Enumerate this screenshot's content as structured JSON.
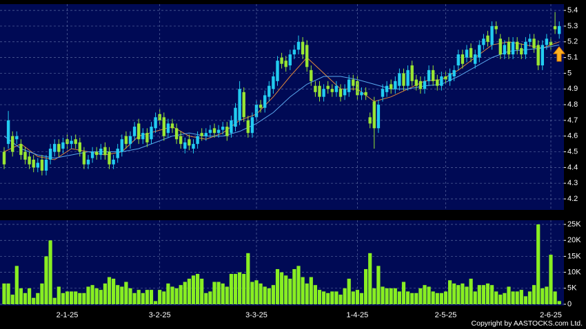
{
  "chart_data": [
    {
      "type": "candlestick",
      "categories": [
        null,
        null,
        null,
        null,
        null,
        null,
        null,
        null,
        null,
        null,
        null,
        null,
        null,
        null,
        null,
        "2-1-25",
        null,
        null,
        null,
        null,
        null,
        null,
        null,
        null,
        null,
        null,
        null,
        null,
        null,
        null,
        null,
        null,
        null,
        null,
        null,
        null,
        null,
        "3-2-25",
        null,
        null,
        null,
        null,
        null,
        null,
        null,
        null,
        null,
        null,
        null,
        null,
        null,
        null,
        null,
        null,
        null,
        null,
        null,
        null,
        null,
        null,
        "3-3-25",
        null,
        null,
        null,
        null,
        null,
        null,
        null,
        null,
        null,
        null,
        null,
        null,
        null,
        null,
        null,
        null,
        null,
        null,
        null,
        null,
        null,
        null,
        null,
        "1-4-25",
        null,
        null,
        null,
        null,
        null,
        null,
        null,
        null,
        null,
        null,
        null,
        null,
        null,
        null,
        null,
        null,
        null,
        null,
        null,
        null,
        "2-5-25",
        null,
        null,
        null,
        null,
        null,
        null,
        null,
        null,
        null,
        null,
        null,
        null,
        null,
        null,
        null,
        null,
        null,
        null,
        null,
        null,
        null,
        null,
        null,
        null,
        "2-6-25",
        null,
        null
      ],
      "candles": [
        [
          4.5,
          4.53,
          4.39,
          4.42
        ],
        [
          4.55,
          4.76,
          4.52,
          4.7
        ],
        [
          4.6,
          4.63,
          4.47,
          4.5
        ],
        [
          4.58,
          4.63,
          4.55,
          4.6
        ],
        [
          4.55,
          4.58,
          4.45,
          4.48
        ],
        [
          4.5,
          4.53,
          4.42,
          4.45
        ],
        [
          4.47,
          4.5,
          4.39,
          4.42
        ],
        [
          4.45,
          4.48,
          4.37,
          4.4
        ],
        [
          4.4,
          4.46,
          4.37,
          4.43
        ],
        [
          4.45,
          4.48,
          4.35,
          4.38
        ],
        [
          4.38,
          4.48,
          4.35,
          4.45
        ],
        [
          4.45,
          4.55,
          4.42,
          4.52
        ],
        [
          4.5,
          4.58,
          4.47,
          4.55
        ],
        [
          4.55,
          4.58,
          4.47,
          4.5
        ],
        [
          4.52,
          4.59,
          4.49,
          4.56
        ],
        [
          4.58,
          4.61,
          4.52,
          4.55
        ],
        [
          4.55,
          4.6,
          4.52,
          4.57
        ],
        [
          4.58,
          4.61,
          4.52,
          4.55
        ],
        [
          4.56,
          4.59,
          4.47,
          4.5
        ],
        [
          4.5,
          4.53,
          4.39,
          4.42
        ],
        [
          4.42,
          4.48,
          4.39,
          4.45
        ],
        [
          4.46,
          4.53,
          4.43,
          4.5
        ],
        [
          4.5,
          4.53,
          4.45,
          4.48
        ],
        [
          4.48,
          4.55,
          4.45,
          4.52
        ],
        [
          4.53,
          4.56,
          4.45,
          4.48
        ],
        [
          4.5,
          4.53,
          4.39,
          4.42
        ],
        [
          4.42,
          4.48,
          4.39,
          4.45
        ],
        [
          4.46,
          4.55,
          4.43,
          4.52
        ],
        [
          4.5,
          4.61,
          4.47,
          4.58
        ],
        [
          4.6,
          4.63,
          4.52,
          4.55
        ],
        [
          4.55,
          4.63,
          4.52,
          4.6
        ],
        [
          4.6,
          4.69,
          4.57,
          4.66
        ],
        [
          4.68,
          4.71,
          4.55,
          4.58
        ],
        [
          4.58,
          4.65,
          4.55,
          4.62
        ],
        [
          4.62,
          4.65,
          4.53,
          4.56
        ],
        [
          4.58,
          4.69,
          4.55,
          4.66
        ],
        [
          4.65,
          4.75,
          4.62,
          4.72
        ],
        [
          4.74,
          4.77,
          4.67,
          4.7
        ],
        [
          4.72,
          4.75,
          4.57,
          4.6
        ],
        [
          4.62,
          4.71,
          4.59,
          4.68
        ],
        [
          4.68,
          4.71,
          4.62,
          4.65
        ],
        [
          4.65,
          4.68,
          4.55,
          4.58
        ],
        [
          4.6,
          4.63,
          4.52,
          4.55
        ],
        [
          4.52,
          4.59,
          4.49,
          4.56
        ],
        [
          4.58,
          4.61,
          4.51,
          4.54
        ],
        [
          4.52,
          4.58,
          4.49,
          4.55
        ],
        [
          4.55,
          4.63,
          4.52,
          4.6
        ],
        [
          4.62,
          4.65,
          4.57,
          4.6
        ],
        [
          4.6,
          4.65,
          4.57,
          4.62
        ],
        [
          4.62,
          4.67,
          4.59,
          4.64
        ],
        [
          4.65,
          4.68,
          4.59,
          4.62
        ],
        [
          4.62,
          4.67,
          4.59,
          4.64
        ],
        [
          4.64,
          4.69,
          4.61,
          4.66
        ],
        [
          4.66,
          4.69,
          4.57,
          4.6
        ],
        [
          4.62,
          4.73,
          4.59,
          4.7
        ],
        [
          4.66,
          4.81,
          4.63,
          4.78
        ],
        [
          4.7,
          4.95,
          4.67,
          4.9
        ],
        [
          4.88,
          4.91,
          4.69,
          4.72
        ],
        [
          4.7,
          4.73,
          4.59,
          4.62
        ],
        [
          4.62,
          4.75,
          4.59,
          4.72
        ],
        [
          4.72,
          4.83,
          4.69,
          4.8
        ],
        [
          4.8,
          4.83,
          4.75,
          4.78
        ],
        [
          4.78,
          4.89,
          4.75,
          4.86
        ],
        [
          4.85,
          4.95,
          4.82,
          4.92
        ],
        [
          4.9,
          5.01,
          4.87,
          4.98
        ],
        [
          4.95,
          5.11,
          4.92,
          5.08
        ],
        [
          5.1,
          5.13,
          5.03,
          5.06
        ],
        [
          5.08,
          5.11,
          5.01,
          5.04
        ],
        [
          5.05,
          5.15,
          5.02,
          5.12
        ],
        [
          5.12,
          5.18,
          5.09,
          5.15
        ],
        [
          5.15,
          5.24,
          5.12,
          5.2
        ],
        [
          5.2,
          5.23,
          5.09,
          5.12
        ],
        [
          5.18,
          5.21,
          5.01,
          5.04
        ],
        [
          5.02,
          5.05,
          4.92,
          4.95
        ],
        [
          4.92,
          4.95,
          4.85,
          4.88
        ],
        [
          4.92,
          4.95,
          4.82,
          4.85
        ],
        [
          4.85,
          4.93,
          4.82,
          4.9
        ],
        [
          4.92,
          4.95,
          4.87,
          4.9
        ],
        [
          4.9,
          4.93,
          4.85,
          4.88
        ],
        [
          4.88,
          4.95,
          4.85,
          4.92
        ],
        [
          4.9,
          4.93,
          4.82,
          4.85
        ],
        [
          4.86,
          4.93,
          4.83,
          4.9
        ],
        [
          4.88,
          4.99,
          4.85,
          4.96
        ],
        [
          4.96,
          4.99,
          4.89,
          4.92
        ],
        [
          4.95,
          4.98,
          4.83,
          4.86
        ],
        [
          4.86,
          4.91,
          4.83,
          4.88
        ],
        [
          4.88,
          4.91,
          4.83,
          4.86
        ],
        [
          4.72,
          4.75,
          4.65,
          4.68
        ],
        [
          4.82,
          4.85,
          4.52,
          4.65
        ],
        [
          4.65,
          4.83,
          4.62,
          4.8
        ],
        [
          4.85,
          4.93,
          4.82,
          4.9
        ],
        [
          4.88,
          4.95,
          4.85,
          4.92
        ],
        [
          4.93,
          4.96,
          4.87,
          4.9
        ],
        [
          4.9,
          4.98,
          4.87,
          4.95
        ],
        [
          4.92,
          5.03,
          4.89,
          5.0
        ],
        [
          5.0,
          5.03,
          4.89,
          4.92
        ],
        [
          4.92,
          5.05,
          4.89,
          5.02
        ],
        [
          5.05,
          5.08,
          4.92,
          4.95
        ],
        [
          4.96,
          4.99,
          4.89,
          4.92
        ],
        [
          4.95,
          4.98,
          4.87,
          4.9
        ],
        [
          4.9,
          4.98,
          4.87,
          4.95
        ],
        [
          4.95,
          5.05,
          4.92,
          5.02
        ],
        [
          5.02,
          5.05,
          4.92,
          4.95
        ],
        [
          4.96,
          4.99,
          4.89,
          4.92
        ],
        [
          4.92,
          5.01,
          4.89,
          4.98
        ],
        [
          4.98,
          5.01,
          4.93,
          4.96
        ],
        [
          4.95,
          5.03,
          4.92,
          5.0
        ],
        [
          4.98,
          5.05,
          4.95,
          5.02
        ],
        [
          5.05,
          5.15,
          5.02,
          5.12
        ],
        [
          5.12,
          5.15,
          5.03,
          5.06
        ],
        [
          5.1,
          5.18,
          5.07,
          5.15
        ],
        [
          5.16,
          5.19,
          5.07,
          5.1
        ],
        [
          5.06,
          5.15,
          5.03,
          5.12
        ],
        [
          5.1,
          5.21,
          5.07,
          5.18
        ],
        [
          5.18,
          5.25,
          5.15,
          5.22
        ],
        [
          5.24,
          5.27,
          5.17,
          5.2
        ],
        [
          5.18,
          5.33,
          5.15,
          5.3
        ],
        [
          5.3,
          5.33,
          5.25,
          5.28
        ],
        [
          5.22,
          5.25,
          5.09,
          5.12
        ],
        [
          5.12,
          5.21,
          5.09,
          5.18
        ],
        [
          5.2,
          5.23,
          5.09,
          5.12
        ],
        [
          5.12,
          5.23,
          5.09,
          5.2
        ],
        [
          5.2,
          5.23,
          5.12,
          5.15
        ],
        [
          5.16,
          5.19,
          5.09,
          5.12
        ],
        [
          5.12,
          5.23,
          5.09,
          5.2
        ],
        [
          5.2,
          5.25,
          5.17,
          5.22
        ],
        [
          5.22,
          5.25,
          5.13,
          5.16
        ],
        [
          5.18,
          5.21,
          5.02,
          5.05
        ],
        [
          5.05,
          5.21,
          5.02,
          5.18
        ],
        [
          5.18,
          5.25,
          5.15,
          5.22
        ],
        [
          5.2,
          5.23,
          5.15,
          5.18
        ],
        [
          5.3,
          5.39,
          5.25,
          5.28
        ],
        [
          5.25,
          5.33,
          5.22,
          5.3
        ]
      ],
      "up_color": "#22ccf0",
      "down_color": "#99e633",
      "lines": [
        {
          "color": "#e08a3c",
          "x": [
            0,
            4,
            8,
            12,
            16,
            20,
            24,
            28,
            32,
            36,
            40,
            44,
            48,
            52,
            56,
            60,
            64,
            68,
            72,
            76,
            80,
            84,
            88,
            92,
            96,
            100,
            104,
            108,
            112,
            116,
            120,
            124,
            128,
            132
          ],
          "values": [
            4.5,
            4.55,
            4.47,
            4.45,
            4.52,
            4.5,
            4.48,
            4.5,
            4.6,
            4.63,
            4.66,
            4.6,
            4.58,
            4.62,
            4.7,
            4.74,
            4.85,
            4.98,
            5.1,
            5.0,
            4.9,
            4.9,
            4.82,
            4.85,
            4.9,
            4.95,
            4.96,
            5.02,
            5.1,
            5.18,
            5.2,
            5.18,
            5.16,
            5.2
          ]
        },
        {
          "color": "#5aa8ee",
          "x": [
            0,
            4,
            8,
            12,
            16,
            20,
            24,
            28,
            32,
            36,
            40,
            44,
            48,
            52,
            56,
            60,
            64,
            68,
            72,
            76,
            80,
            84,
            88,
            92,
            96,
            100,
            104,
            108,
            112,
            116,
            120,
            124,
            128,
            132
          ],
          "values": [
            4.6,
            4.52,
            4.48,
            4.46,
            4.48,
            4.5,
            4.5,
            4.5,
            4.52,
            4.56,
            4.6,
            4.62,
            4.6,
            4.6,
            4.63,
            4.68,
            4.75,
            4.85,
            4.93,
            4.98,
            4.98,
            4.96,
            4.93,
            4.9,
            4.9,
            4.92,
            4.93,
            4.98,
            5.04,
            5.1,
            5.14,
            5.15,
            5.16,
            5.18
          ]
        }
      ],
      "ylim": [
        4.13,
        5.44
      ],
      "yticks": [
        4.2,
        4.3,
        4.4,
        4.5,
        4.6,
        4.7,
        4.8,
        4.9,
        5,
        5.1,
        5.2,
        5.3,
        5.4
      ],
      "grid": true
    },
    {
      "type": "bar",
      "values": [
        6.5,
        6.5,
        3,
        12,
        5,
        3.5,
        5,
        2,
        3.5,
        6.5,
        15,
        20,
        2,
        5.5,
        3.5,
        4,
        4,
        4,
        3.5,
        3.5,
        5.5,
        6,
        5,
        4.5,
        6.5,
        8.5,
        8,
        6,
        5.5,
        7,
        5,
        3.5,
        4.5,
        3.5,
        4.5,
        4.5,
        1,
        4.5,
        4,
        6.5,
        5.5,
        5,
        6,
        7,
        8,
        9,
        9.5,
        8,
        3.5,
        4,
        7,
        7,
        6.5,
        5.5,
        9.5,
        9.5,
        10,
        9.5,
        16,
        7,
        7.5,
        6.5,
        5.5,
        5,
        6,
        11,
        10,
        9,
        8,
        11,
        12,
        8.5,
        6.5,
        8.5,
        6,
        4.5,
        4,
        3.5,
        4,
        4,
        3,
        5,
        8,
        4,
        4.5,
        3.5,
        11,
        16,
        5,
        12,
        5.5,
        5,
        5,
        5,
        4,
        7,
        4,
        3.5,
        3.5,
        5,
        6,
        5.5,
        4,
        3.5,
        3.5,
        4,
        7.5,
        6.5,
        6,
        6.5,
        5.5,
        8,
        4,
        6,
        6,
        6.5,
        6,
        4,
        3,
        3.5,
        5.5,
        4,
        4,
        4.5,
        2.5,
        4,
        6,
        25,
        5,
        5.5,
        15.5,
        4,
        1
      ],
      "color": "#88ee22",
      "ylim": [
        0,
        26.3
      ],
      "yticks": [
        0,
        {
          "value": 5,
          "label": "5K"
        },
        {
          "value": 10,
          "label": "10K"
        },
        {
          "value": 15,
          "label": "15K"
        },
        {
          "value": 20,
          "label": "20K"
        },
        {
          "value": 25,
          "label": "25K"
        }
      ],
      "grid": true
    }
  ],
  "footer": "Copyright by AASTOCKS.com Ltd."
}
